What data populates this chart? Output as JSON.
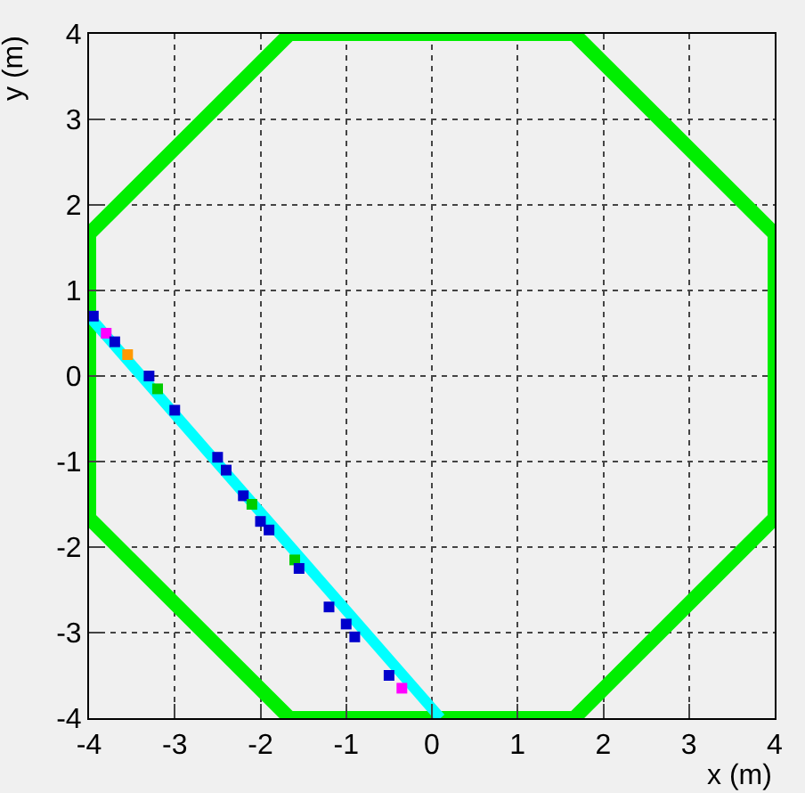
{
  "chart_data": {
    "type": "line",
    "xlabel": "x (m)",
    "ylabel": "y (m)",
    "xlim": [
      -4,
      4
    ],
    "ylim": [
      -4,
      4
    ],
    "xticks": [
      -4,
      -3,
      -2,
      -1,
      0,
      1,
      2,
      3,
      4
    ],
    "yticks": [
      -4,
      -3,
      -2,
      -1,
      0,
      1,
      2,
      3,
      4
    ],
    "grid": true,
    "series": [
      {
        "color": "#00ee00",
        "x": [
          -4,
          -4,
          -1.66,
          1.66,
          4,
          4
        ],
        "values": [
          -1.66,
          1.66,
          4,
          4,
          1.66,
          -1.66
        ]
      },
      {
        "color": "#00ee00",
        "x": [
          -4,
          -1.66,
          1.66,
          4
        ],
        "values": [
          -1.66,
          -4,
          -4,
          -1.66
        ]
      },
      {
        "color": "#00ffff",
        "x": [
          -4,
          0.1
        ],
        "values": [
          0.7,
          -4
        ]
      },
      {
        "type": "scatter",
        "marker": "square",
        "colors": [
          "#0000cc",
          "#ff00ff",
          "#0000cc",
          "#ff9900",
          "#0000cc",
          "#00cc00",
          "#0000cc",
          "#0000cc",
          "#0000cc",
          "#0000cc",
          "#00cc00",
          "#0000cc",
          "#0000cc",
          "#00cc00",
          "#0000cc",
          "#0000cc",
          "#0000cc",
          "#0000cc",
          "#0000cc",
          "#ff00ff"
        ],
        "x": [
          -3.95,
          -3.8,
          -3.7,
          -3.55,
          -3.3,
          -3.2,
          -3.0,
          -2.5,
          -2.4,
          -2.2,
          -2.1,
          -2.0,
          -1.9,
          -1.6,
          -1.55,
          -1.2,
          -1.0,
          -0.9,
          -0.5,
          -0.35
        ],
        "values": [
          0.7,
          0.5,
          0.4,
          0.25,
          0.0,
          -0.15,
          -0.4,
          -0.95,
          -1.1,
          -1.4,
          -1.5,
          -1.7,
          -1.8,
          -2.15,
          -2.25,
          -2.7,
          -2.9,
          -3.05,
          -3.5,
          -3.65
        ]
      }
    ]
  }
}
